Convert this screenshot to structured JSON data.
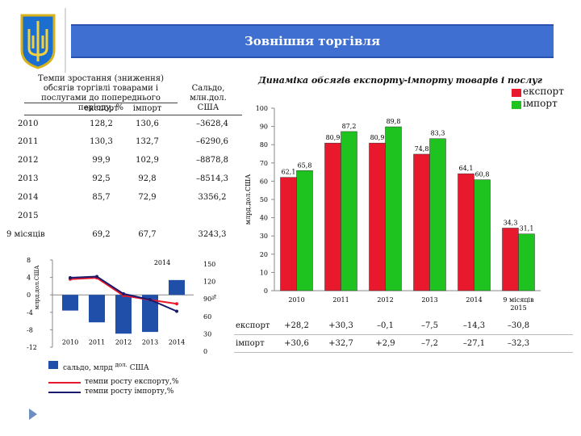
{
  "header": {
    "title": "Зовнішня торгівля"
  },
  "table": {
    "header_growth": "Темпи зростання (зниження) обсягів торгівлі товарами і послугами до попереднього періоду, %",
    "header_balance": "Сальдо, млн.дол. США",
    "col_export": "експорт",
    "col_import": "імпорт",
    "rows": [
      {
        "year": "2010",
        "export": "128,2",
        "import": "130,6",
        "balance": "–3628,4"
      },
      {
        "year": "2011",
        "export": "130,3",
        "import": "132,7",
        "balance": "–6290,6"
      },
      {
        "year": "2012",
        "export": "99,9",
        "import": "102,9",
        "balance": "–8878,8"
      },
      {
        "year": "2013",
        "export": "92,5",
        "import": "92,8",
        "balance": "–8514,3"
      },
      {
        "year": "2014",
        "export": "85,7",
        "import": "72,9",
        "balance": "3356,2"
      },
      {
        "year": "2015",
        "export": "",
        "import": "",
        "balance": ""
      },
      {
        "year": "9 місяців",
        "export": "69,2",
        "import": "67,7",
        "balance": "3243,3"
      }
    ]
  },
  "chart_data": [
    {
      "type": "bar",
      "title": "Динаміка обсягів експорту-імпорту товарів і послуг",
      "ylabel": "млрд.дол.США",
      "ylim": [
        0,
        100
      ],
      "yticks": [
        "0",
        "10",
        "20",
        "30",
        "40",
        "50",
        "60",
        "70",
        "80",
        "90",
        "100"
      ],
      "categories": [
        "2010",
        "2011",
        "2012",
        "2013",
        "2014",
        "9 місяців 2015"
      ],
      "series": [
        {
          "name": "експорт",
          "color": "#e8192c",
          "values": [
            62.1,
            80.9,
            80.9,
            74.8,
            64.1,
            34.3
          ],
          "labels": [
            "62,1",
            "80,9",
            "80,9",
            "74,8",
            "64,1",
            "34,3"
          ]
        },
        {
          "name": "імпорт",
          "color": "#1fc31f",
          "values": [
            65.8,
            87.2,
            89.8,
            83.3,
            60.8,
            31.1
          ],
          "labels": [
            "65,8",
            "87,2",
            "89,8",
            "83,3",
            "60,8",
            "31,1"
          ]
        }
      ],
      "bottom_table": {
        "rows": [
          {
            "label": "експорт",
            "values": [
              "+28,2",
              "+30,3",
              "–0,1",
              "–7,5",
              "–14,3",
              "–30,8"
            ]
          },
          {
            "label": "імпорт",
            "values": [
              "+30,6",
              "+32,7",
              "+2,9",
              "–7,2",
              "–27,1",
              "–32,3"
            ]
          }
        ]
      }
    },
    {
      "type": "bar+line",
      "title": "",
      "ylabel_left": "млрд.дол.США",
      "ylabel_right": "%",
      "categories": [
        "2010",
        "2011",
        "2012",
        "2013",
        "2014"
      ],
      "left_ticks": [
        "8",
        "4",
        "0",
        "-4",
        "-8",
        "-12"
      ],
      "right_ticks": [
        "150",
        "120",
        "90",
        "60",
        "30",
        "0"
      ],
      "balance": {
        "name": "сальдо, млрд.дол.США",
        "color": "#1f4fa8",
        "values": [
          -3.6,
          -6.3,
          -8.9,
          -8.5,
          3.4
        ]
      },
      "lines": [
        {
          "name": "темпи росту експорту,%",
          "color": "#e8192c",
          "values": [
            128.2,
            130.3,
            99.9,
            92.5,
            85.7
          ]
        },
        {
          "name": "темпи росту імпорту,%",
          "color": "#1a1a6e",
          "values": [
            130.6,
            132.7,
            102.9,
            92.8,
            72.9
          ]
        }
      ],
      "legend_balance_prefix": "сальдо, млрд",
      "legend_balance_unit": "дол.",
      "legend_balance_suffix": "США"
    }
  ]
}
